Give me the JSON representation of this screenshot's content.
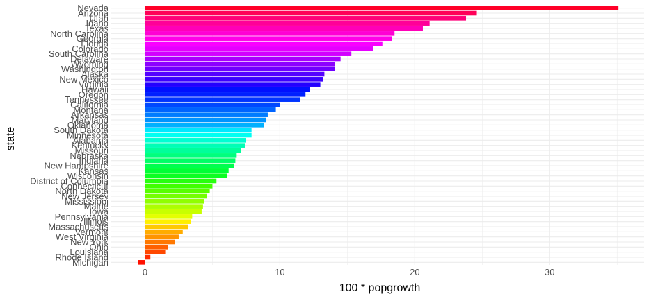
{
  "chart_data": {
    "type": "bar",
    "orientation": "horizontal",
    "xlabel": "100 * popgrowth",
    "ylabel": "state",
    "xlim": [
      -2.5,
      37
    ],
    "xticks": [
      0,
      10,
      20,
      30
    ],
    "grid": true,
    "legend": "none",
    "categories": [
      "Nevada",
      "Arizona",
      "Utah",
      "Idaho",
      "Texas",
      "North Carolina",
      "Georgia",
      "Florida",
      "Colorado",
      "South Carolina",
      "Delaware",
      "Wyoming",
      "Washington",
      "Alaska",
      "New Mexico",
      "Virginia",
      "Hawaii",
      "Oregon",
      "Tennessee",
      "California",
      "Montana",
      "Arkansas",
      "Maryland",
      "Oklahoma",
      "South Dakota",
      "Minnesota",
      "Alabama",
      "Kentucky",
      "Missouri",
      "Nebraska",
      "Indiana",
      "New Hampshire",
      "Kansas",
      "Wisconsin",
      "District of Columbia",
      "Connecticut",
      "North Dakota",
      "New Jersey",
      "Mississippi",
      "Maine",
      "Iowa",
      "Pennsylvania",
      "Illinois",
      "Massachusetts",
      "Vermont",
      "West Virginia",
      "New York",
      "Ohio",
      "Louisiana",
      "Rhode Island",
      "Michigan"
    ],
    "values": [
      35.1,
      24.6,
      23.8,
      21.1,
      20.6,
      18.5,
      18.3,
      17.6,
      16.9,
      15.3,
      14.5,
      14.1,
      14.1,
      13.3,
      13.2,
      13.0,
      12.2,
      11.9,
      11.5,
      10.0,
      9.7,
      9.1,
      9.0,
      8.8,
      7.9,
      7.9,
      7.5,
      7.4,
      7.1,
      6.8,
      6.7,
      6.6,
      6.2,
      6.1,
      5.3,
      5.0,
      4.8,
      4.6,
      4.4,
      4.3,
      4.2,
      3.5,
      3.4,
      3.2,
      2.8,
      2.5,
      2.2,
      1.7,
      1.5,
      0.4,
      -0.5
    ],
    "colors": [
      "#FF0028",
      "#FF0058",
      "#FF0078",
      "#FF0098",
      "#FF00B8",
      "#FF00D4",
      "#FF00E8",
      "#FA00FF",
      "#E600FF",
      "#D200FF",
      "#A800FF",
      "#8C00FF",
      "#7000FF",
      "#5400FF",
      "#3C00FF",
      "#2400FF",
      "#0010FF",
      "#0020FF",
      "#0034FF",
      "#0048FF",
      "#0064FF",
      "#007CFF",
      "#0094FF",
      "#00B0FF",
      "#00E8FF",
      "#00FFF2",
      "#00FFD2",
      "#00FFB6",
      "#00FF9A",
      "#00FF7E",
      "#00FF66",
      "#00FF4E",
      "#00FF36",
      "#0CFF22",
      "#28FF10",
      "#40FF00",
      "#58FF00",
      "#74FF00",
      "#90FF00",
      "#ACFF00",
      "#C8FF00",
      "#E4FF00",
      "#FFF000",
      "#FFC800",
      "#FFAC00",
      "#FF9400",
      "#FF7800",
      "#FF6000",
      "#FF4800",
      "#FF2C00",
      "#FF1000"
    ]
  }
}
